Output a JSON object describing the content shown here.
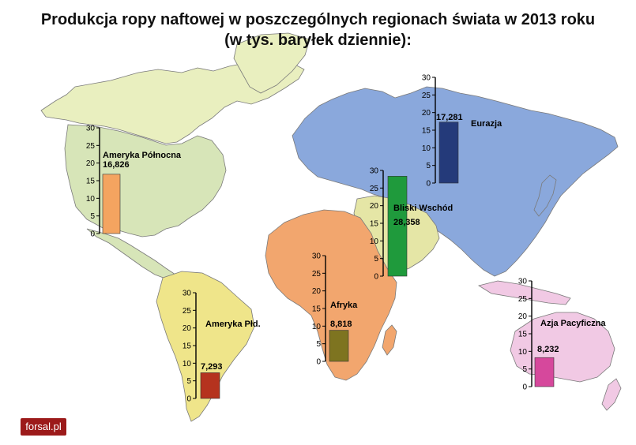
{
  "chart_data": {
    "type": "bar",
    "title": "Produkcja ropy naftowej w poszczególnych regionach świata w 2013 roku",
    "subtitle": "(w tys. baryłek dziennie):",
    "ylim": [
      0,
      30
    ],
    "yticks": [
      0,
      5,
      10,
      15,
      20,
      25,
      30
    ],
    "categories": [
      "Ameryka Północna",
      "Ameryka Płd.",
      "Eurazja",
      "Bliski Wschód",
      "Afryka",
      "Azja Pacyficzna"
    ],
    "values": [
      16.826,
      7.293,
      17.281,
      28.358,
      8.818,
      8.232
    ],
    "value_labels": [
      "16,826",
      "7,293",
      "17,281",
      "28,358",
      "8,818",
      "8,232"
    ],
    "colors": [
      "#f4a460",
      "#b5331e",
      "#243a7a",
      "#1f9a3c",
      "#7e7420",
      "#d6489c"
    ]
  },
  "map_colors": {
    "north_america": "#e9efbf",
    "usa_canada": "#d7e5b8",
    "south_america": "#efe58a",
    "europe_asia": "#8aa8dc",
    "middle_east": "#e5e6a6",
    "africa": "#f2a66e",
    "asia_pacific": "#f1c9e4",
    "ocean": "#ffffff"
  },
  "logo": {
    "text": "forsal.pl"
  }
}
